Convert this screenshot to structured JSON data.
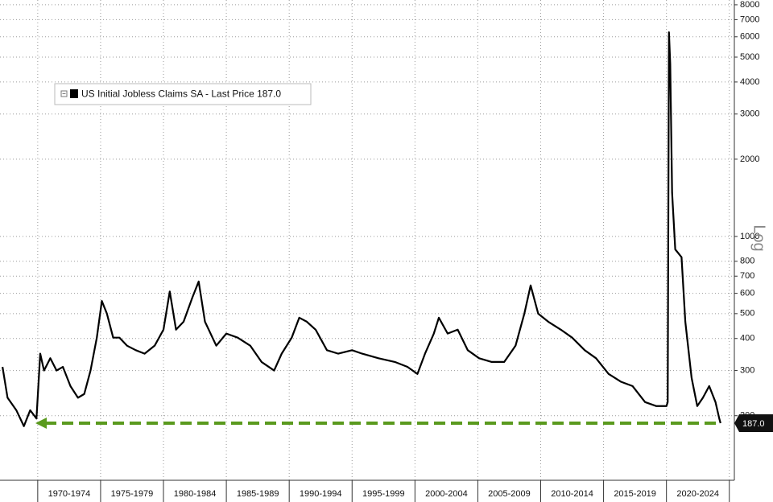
{
  "chart_data": {
    "type": "line",
    "log_scale": true,
    "grid": true,
    "scale_label": "Log",
    "xlim": [
      1967,
      2025.4
    ],
    "ylim": [
      112,
      8350
    ],
    "xticks": [
      1970,
      1975,
      1980,
      1985,
      1990,
      1995,
      2000,
      2005,
      2010,
      2015,
      2020,
      2025
    ],
    "period_labels": [
      "1970-1974",
      "1975-1979",
      "1980-1984",
      "1985-1989",
      "1990-1994",
      "1995-1999",
      "2000-2004",
      "2005-2009",
      "2010-2014",
      "2015-2019",
      "2020-2024"
    ],
    "yticks": [
      200,
      300,
      400,
      500,
      600,
      700,
      800,
      1000,
      2000,
      3000,
      4000,
      5000,
      6000,
      7000,
      8000
    ],
    "last_price": {
      "value": 187,
      "label": "187.0"
    },
    "reference_color": "#5a9a1e",
    "series": [
      {
        "name": "US Initial Jobless Claims SA - Last Price 187.0",
        "color": "#000000",
        "x": [
          1967.2,
          1967.6,
          1968.3,
          1968.9,
          1969.4,
          1969.9,
          1970.2,
          1970.5,
          1971.0,
          1971.5,
          1972.0,
          1972.6,
          1973.2,
          1973.7,
          1974.2,
          1974.7,
          1975.1,
          1975.5,
          1976.0,
          1976.5,
          1977.1,
          1977.8,
          1978.5,
          1979.3,
          1980.0,
          1980.5,
          1981.0,
          1981.6,
          1982.3,
          1982.8,
          1983.3,
          1984.2,
          1985.0,
          1985.9,
          1986.9,
          1987.8,
          1988.8,
          1989.4,
          1990.2,
          1990.8,
          1991.4,
          1992.1,
          1993.0,
          1993.9,
          1995.0,
          1995.8,
          1997.1,
          1998.4,
          1999.4,
          2000.2,
          2000.8,
          2001.5,
          2001.9,
          2002.6,
          2003.4,
          2004.2,
          2005.1,
          2006.1,
          2007.1,
          2008.0,
          2008.7,
          2009.2,
          2009.8,
          2010.6,
          2011.6,
          2012.5,
          2013.5,
          2014.4,
          2015.4,
          2016.4,
          2017.3,
          2018.3,
          2019.2,
          2020.0,
          2020.1,
          2020.2,
          2020.3,
          2020.45,
          2020.7,
          2021.2,
          2021.5,
          2022.0,
          2022.45,
          2022.9,
          2023.4,
          2023.9,
          2024.2,
          2024.3
        ],
        "values": [
          310,
          235,
          210,
          182,
          210,
          195,
          349,
          300,
          335,
          300,
          310,
          261,
          235,
          243,
          300,
          403,
          560,
          500,
          403,
          403,
          375,
          360,
          349,
          375,
          433,
          610,
          433,
          465,
          578,
          667,
          465,
          375,
          418,
          403,
          375,
          324,
          300,
          349,
          403,
          482,
          465,
          433,
          360,
          349,
          360,
          349,
          335,
          324,
          310,
          291,
          349,
          418,
          482,
          418,
          433,
          360,
          335,
          324,
          324,
          375,
          500,
          644,
          500,
          465,
          433,
          403,
          360,
          335,
          291,
          271,
          261,
          226,
          218,
          218,
          226,
          6250,
          4700,
          1480,
          890,
          830,
          465,
          281,
          218,
          235,
          261,
          226,
          195,
          187
        ]
      }
    ]
  }
}
